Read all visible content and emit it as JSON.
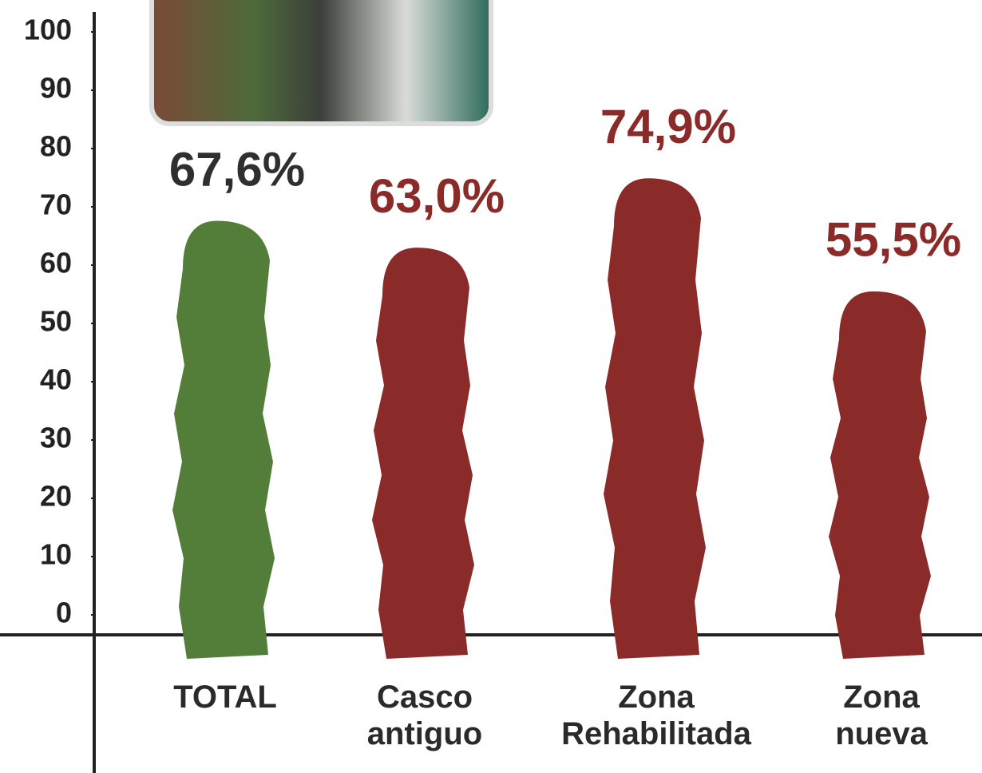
{
  "chart_data": {
    "type": "bar",
    "categories": [
      "TOTAL",
      "Casco antiguo",
      "Zona Rehabilitada",
      "Zona nueva"
    ],
    "values": [
      67.6,
      63.0,
      74.9,
      55.5
    ],
    "value_labels": [
      "67,6%",
      "63,0%",
      "74,9%",
      "55,5%"
    ],
    "colors": [
      "#527e3a",
      "#8a2b29",
      "#8a2b29",
      "#8a2b29"
    ],
    "ylim": [
      0,
      100
    ],
    "yticks": [
      0,
      10,
      20,
      30,
      40,
      50,
      60,
      70,
      80,
      90,
      100
    ]
  }
}
